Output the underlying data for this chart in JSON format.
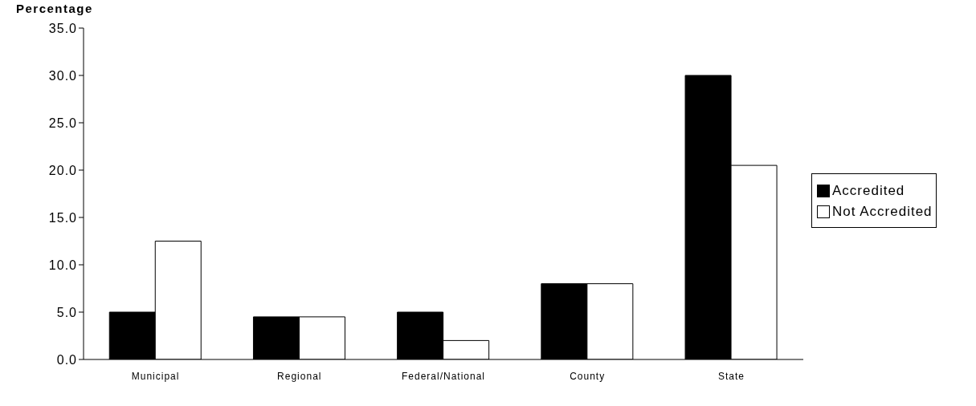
{
  "chart_data": {
    "type": "bar",
    "ylabel": "Percentage",
    "categories": [
      "Municipal",
      "Regional",
      "Federal/National",
      "County",
      "State"
    ],
    "series": [
      {
        "name": "Accredited",
        "color": "#000000",
        "values": [
          5.0,
          4.5,
          5.0,
          8.0,
          30.0
        ]
      },
      {
        "name": "Not Accredited",
        "color": "#ffffff",
        "values": [
          12.5,
          4.5,
          2.0,
          8.0,
          20.5
        ]
      }
    ],
    "ylim": [
      0,
      35
    ],
    "yticks": [
      {
        "value": 0,
        "label": "0.0"
      },
      {
        "value": 5,
        "label": "5.0"
      },
      {
        "value": 10,
        "label": "10.0"
      },
      {
        "value": 15,
        "label": "15.0"
      },
      {
        "value": 20,
        "label": "20.0"
      },
      {
        "value": 25,
        "label": "25.0"
      },
      {
        "value": 30,
        "label": "30.0"
      },
      {
        "value": 35,
        "label": "35.0"
      }
    ],
    "legend": "right"
  }
}
